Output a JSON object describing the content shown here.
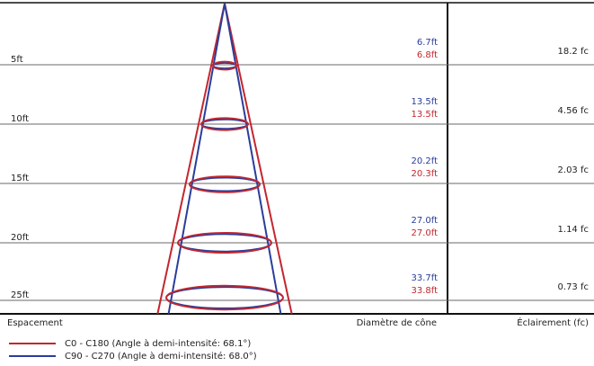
{
  "colors": {
    "c0_line": "#c4262e",
    "c90_line": "#2a3d9c",
    "grid": "#555555",
    "frame": "#111111"
  },
  "rows": [
    {
      "distance": "5ft",
      "diameter_c90": "6.7ft",
      "diameter_c0": "6.8ft",
      "illuminance": "18.2 fc"
    },
    {
      "distance": "10ft",
      "diameter_c90": "13.5ft",
      "diameter_c0": "13.5ft",
      "illuminance": "4.56 fc"
    },
    {
      "distance": "15ft",
      "diameter_c90": "20.2ft",
      "diameter_c0": "20.3ft",
      "illuminance": "2.03 fc"
    },
    {
      "distance": "20ft",
      "diameter_c90": "27.0ft",
      "diameter_c0": "27.0ft",
      "illuminance": "1.14 fc"
    },
    {
      "distance": "25ft",
      "diameter_c90": "33.7ft",
      "diameter_c0": "33.8ft",
      "illuminance": "0.73 fc"
    }
  ],
  "footer": {
    "spacing_label": "Espacement",
    "diameter_label": "Diamètre de cône",
    "illuminance_label": "Éclairement (fc)"
  },
  "legend": [
    {
      "label": "C0 - C180 (Angle à demi-intensité: 68.1°)",
      "color": "#c4262e",
      "beam_angle_deg": 68.1
    },
    {
      "label": "C90 - C270 (Angle à demi-intensité: 68.0°)",
      "color": "#2a3d9c",
      "beam_angle_deg": 68.0
    }
  ]
}
